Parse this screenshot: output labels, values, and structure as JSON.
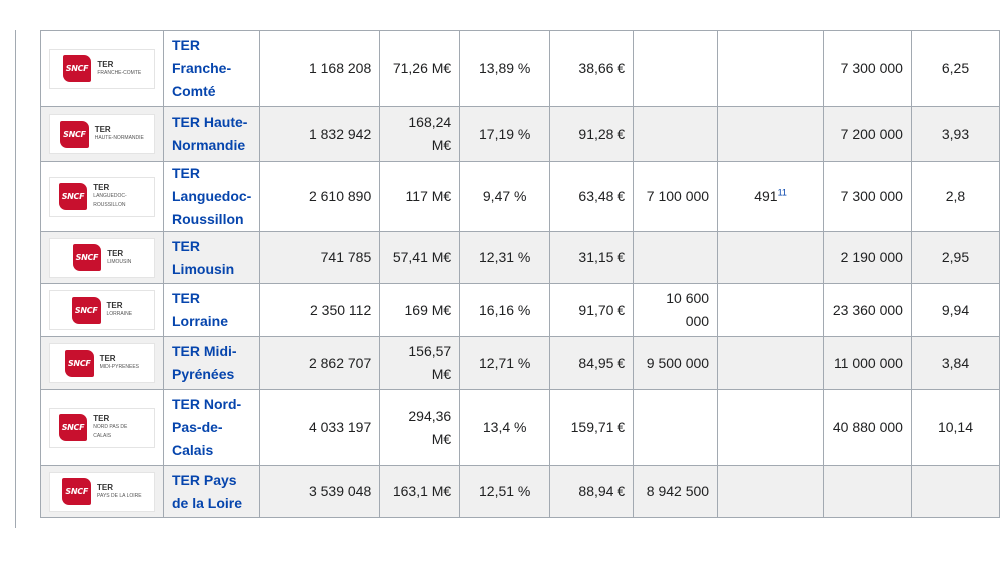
{
  "rows": [
    {
      "logo_ter": "TER",
      "logo_region": "FRANCHE-COMTE",
      "name": "TER Franche-Comté",
      "c1": "1 168 208",
      "c2": "71,26 M€",
      "c3": "13,89 %",
      "c4": "38,66 €",
      "c5": "",
      "c6": "",
      "c6_ref": "",
      "c7": "7 300 000",
      "c8": "6,25"
    },
    {
      "logo_ter": "TER",
      "logo_region": "HAUTE-NORMANDIE",
      "name": "TER Haute-Normandie",
      "c1": "1 832 942",
      "c2": "168,24 M€",
      "c3": "17,19 %",
      "c4": "91,28 €",
      "c5": "",
      "c6": "",
      "c6_ref": "",
      "c7": "7 200 000",
      "c8": "3,93"
    },
    {
      "logo_ter": "TER",
      "logo_region": "LANGUEDOC-ROUSSILLON",
      "name": "TER Languedoc-Roussillon",
      "c1": "2 610 890",
      "c2": "117 M€",
      "c3": "9,47 %",
      "c4": "63,48 €",
      "c5": "7 100 000",
      "c6": "491",
      "c6_ref": "11",
      "c7": "7 300 000",
      "c8": "2,8"
    },
    {
      "logo_ter": "TER",
      "logo_region": "LIMOUSIN",
      "name": "TER Limousin",
      "c1": "741 785",
      "c2": "57,41 M€",
      "c3": "12,31 %",
      "c4": "31,15 €",
      "c5": "",
      "c6": "",
      "c6_ref": "",
      "c7": "2 190 000",
      "c8": "2,95"
    },
    {
      "logo_ter": "TER",
      "logo_region": "LORRAINE",
      "name": "TER Lorraine",
      "c1": "2 350 112",
      "c2": "169 M€",
      "c3": "16,16 %",
      "c4": "91,70 €",
      "c5": "10 600 000",
      "c6": "",
      "c6_ref": "",
      "c7": "23 360 000",
      "c8": "9,94"
    },
    {
      "logo_ter": "TER",
      "logo_region": "MIDI-PYRENEES",
      "name": "TER Midi-Pyrénées",
      "c1": "2 862 707",
      "c2": "156,57 M€",
      "c3": "12,71 %",
      "c4": "84,95 €",
      "c5": "9 500 000",
      "c6": "",
      "c6_ref": "",
      "c7": "11 000 000",
      "c8": "3,84"
    },
    {
      "logo_ter": "TER",
      "logo_region": "NORD PAS DE CALAIS",
      "name": "TER Nord-Pas-de-Calais",
      "c1": "4 033 197",
      "c2": "294,36 M€",
      "c3": "13,4 %",
      "c4": "159,71 €",
      "c5": "",
      "c6": "",
      "c6_ref": "",
      "c7": "40 880 000",
      "c8": "10,14"
    },
    {
      "logo_ter": "TER",
      "logo_region": "PAYS DE LA LOIRE",
      "name": "TER Pays de la Loire",
      "c1": "3 539 048",
      "c2": "163,1 M€",
      "c3": "12,51 %",
      "c4": "88,94 €",
      "c5": "8 942 500",
      "c6": "",
      "c6_ref": "",
      "c7": "",
      "c8": ""
    }
  ],
  "logo_mark": "SNCF",
  "colors": {
    "link": "#0645ad",
    "border": "#a2a9b1",
    "stripe": "#f0f0f0",
    "sncf_red": "#c8102e"
  }
}
